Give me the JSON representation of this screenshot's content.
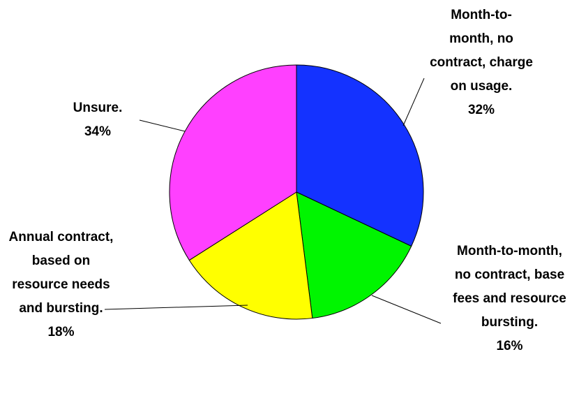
{
  "chart_data": {
    "type": "pie",
    "categories": [
      "Month-to-month, no contract, charge on usage.",
      "Month-to-month, no contract, base fees and resource bursting.",
      "Annual contract, based on resource needs and bursting.",
      "Unsure."
    ],
    "values": [
      32,
      16,
      18,
      34
    ],
    "value_labels": [
      "32%",
      "16%",
      "18%",
      "34%"
    ],
    "colors": [
      "#1432ff",
      "#00f500",
      "#ffff00",
      "#ff40ff"
    ]
  }
}
